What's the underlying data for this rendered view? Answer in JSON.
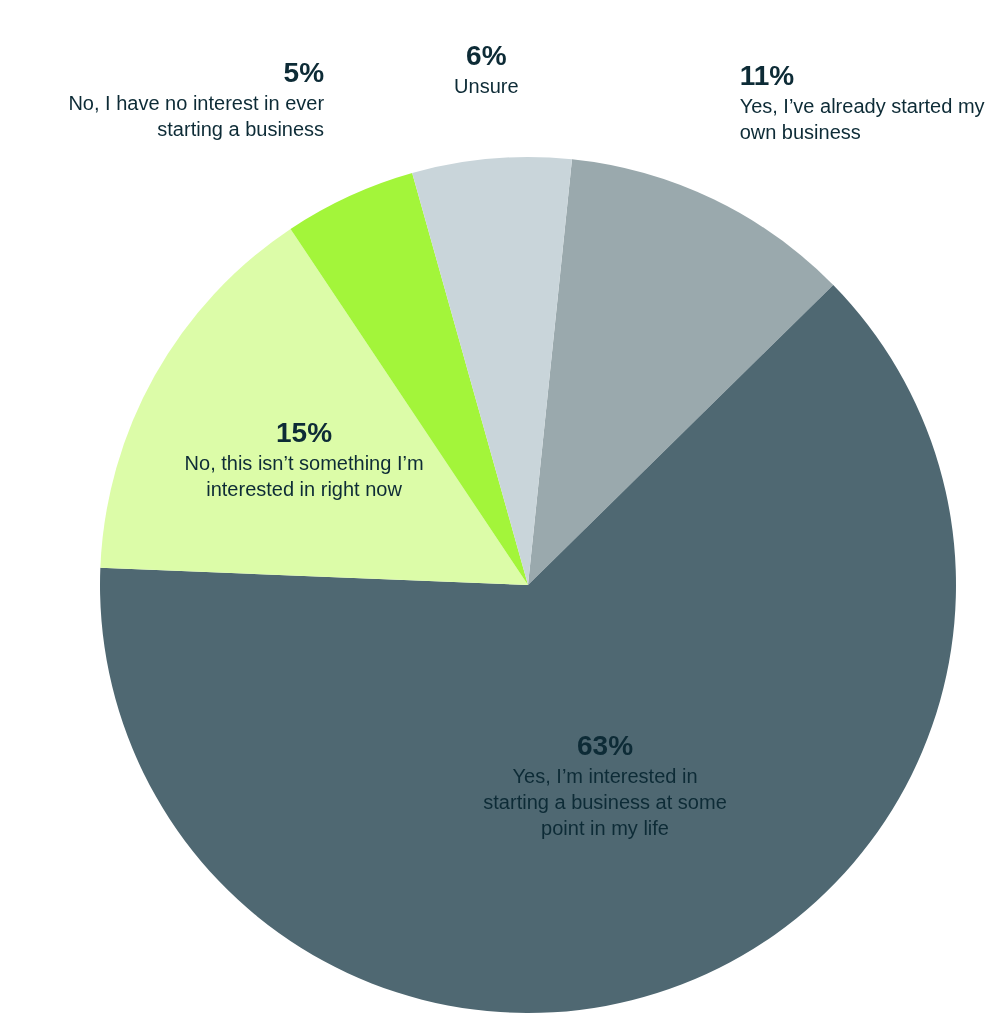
{
  "chart_data": {
    "type": "pie",
    "categories": [
      "Yes, I’ve already started my own business",
      "Yes, I’m interested in starting a business at some point in my life",
      "No, this isn’t something I’m interested in right now",
      "No, I have no interest in ever starting a business",
      "Unsure"
    ],
    "values": [
      11,
      63,
      15,
      5,
      6
    ],
    "value_labels": [
      "11%",
      "63%",
      "15%",
      "5%",
      "6%"
    ],
    "colors": [
      "#9aa9ad",
      "#4f6872",
      "#dcfca8",
      "#a3f53a",
      "#c9d5da"
    ]
  }
}
